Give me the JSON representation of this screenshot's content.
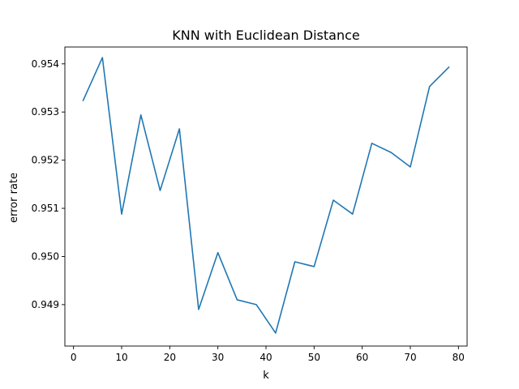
{
  "chart_data": {
    "type": "line",
    "title": "KNN with Euclidean Distance",
    "xlabel": "k",
    "ylabel": "error rate",
    "xlim": [
      -1.8,
      81.8
    ],
    "ylim": [
      0.94814,
      0.95435
    ],
    "xticks": [
      0,
      10,
      20,
      30,
      40,
      50,
      60,
      70,
      80
    ],
    "yticks": [
      0.949,
      0.95,
      0.951,
      0.952,
      0.953,
      0.954
    ],
    "ytick_labels": [
      "0.949",
      "0.950",
      "0.951",
      "0.952",
      "0.953",
      "0.954"
    ],
    "grid": false,
    "series": [
      {
        "color": "#1f77b4",
        "x": [
          2,
          6,
          10,
          14,
          18,
          22,
          26,
          30,
          34,
          38,
          42,
          46,
          50,
          54,
          58,
          62,
          66,
          70,
          74,
          78
        ],
        "y": [
          0.95324,
          0.95413,
          0.95088,
          0.95294,
          0.95137,
          0.95265,
          0.9489,
          0.95008,
          0.9491,
          0.949,
          0.94841,
          0.94989,
          0.94979,
          0.95117,
          0.95088,
          0.95235,
          0.95216,
          0.95186,
          0.95353,
          0.95393
        ]
      }
    ]
  }
}
